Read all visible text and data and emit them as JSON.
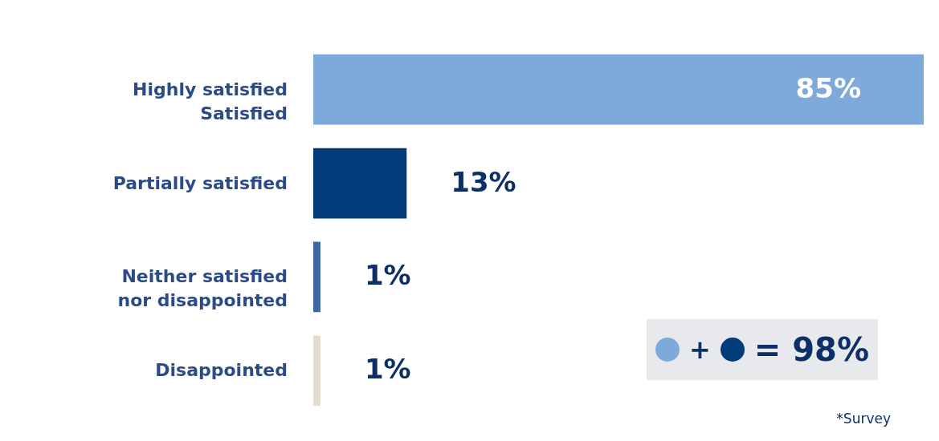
{
  "chart_data": {
    "type": "bar",
    "orientation": "horizontal",
    "categories": [
      "Highly satisfied\nSatisfied",
      "Partially satisfied",
      "Neither satisfied\nnor disappointed",
      "Disappointed"
    ],
    "values": [
      85,
      13,
      1,
      1
    ],
    "colors": [
      "#7eaadb",
      "#023b7a",
      "#3c68a3",
      "#e3dccf"
    ],
    "value_labels": [
      "85%",
      "13%",
      "1%",
      "1%"
    ],
    "annotations": [
      "+",
      "= 98%",
      "*Survey"
    ],
    "tick_labels": "y"
  }
}
